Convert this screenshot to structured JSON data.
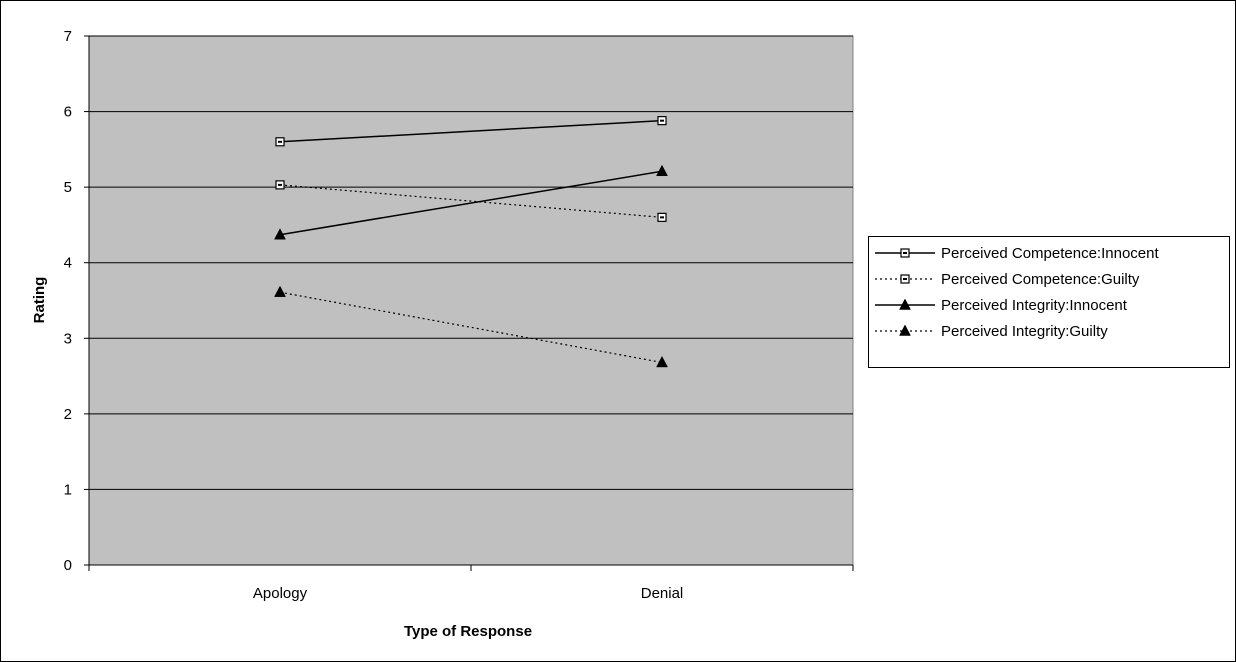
{
  "chart_data": {
    "type": "line",
    "title": "",
    "xlabel": "Type of Response",
    "ylabel": "Rating",
    "categories": [
      "Apology",
      "Denial"
    ],
    "ylim": [
      0,
      7
    ],
    "yticks": [
      "0",
      "1",
      "2",
      "3",
      "4",
      "5",
      "6",
      "7"
    ],
    "grid": true,
    "legend_position": "right",
    "plot_background": "#c0c0c0",
    "series": [
      {
        "name": "Perceived Competence:Innocent",
        "values": [
          5.6,
          5.88
        ],
        "marker": "square",
        "line_style": "solid"
      },
      {
        "name": "Perceived Competence:Guilty",
        "values": [
          5.03,
          4.6
        ],
        "marker": "square",
        "line_style": "dotted"
      },
      {
        "name": "Perceived Integrity:Innocent",
        "values": [
          4.37,
          5.21
        ],
        "marker": "triangle",
        "line_style": "solid"
      },
      {
        "name": "Perceived Integrity:Guilty",
        "values": [
          3.61,
          2.68
        ],
        "marker": "triangle",
        "line_style": "dotted"
      }
    ]
  }
}
